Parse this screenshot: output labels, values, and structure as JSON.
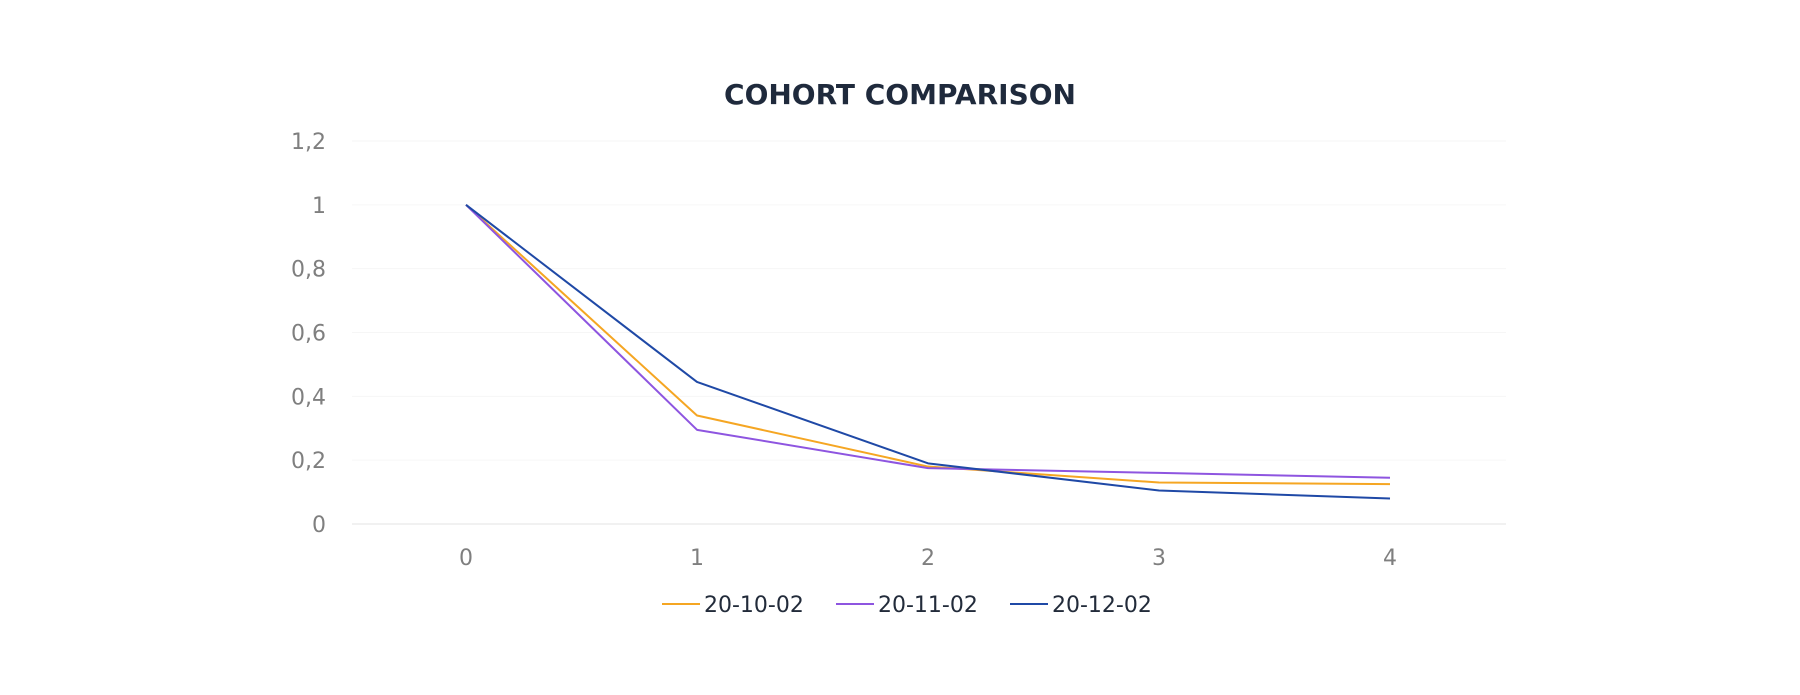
{
  "chart_data": {
    "type": "line",
    "title": "COHORT COMPARISON",
    "xlabel": "",
    "ylabel": "",
    "x": [
      0,
      1,
      2,
      3,
      4
    ],
    "ylim": [
      0,
      1.2
    ],
    "y_ticks": [
      "0",
      "0,2",
      "0,4",
      "0,6",
      "0,8",
      "1",
      "1,2"
    ],
    "x_ticks": [
      "0",
      "1",
      "2",
      "3",
      "4"
    ],
    "grid": true,
    "legend_position": "bottom",
    "series": [
      {
        "name": "20-10-02",
        "color": "#f5a623",
        "values": [
          1.0,
          0.34,
          0.18,
          0.13,
          0.125
        ]
      },
      {
        "name": "20-11-02",
        "color": "#8e55e0",
        "values": [
          1.0,
          0.295,
          0.175,
          0.16,
          0.145
        ]
      },
      {
        "name": "20-12-02",
        "color": "#1f49a6",
        "values": [
          1.0,
          0.445,
          0.19,
          0.105,
          0.08
        ]
      }
    ]
  }
}
